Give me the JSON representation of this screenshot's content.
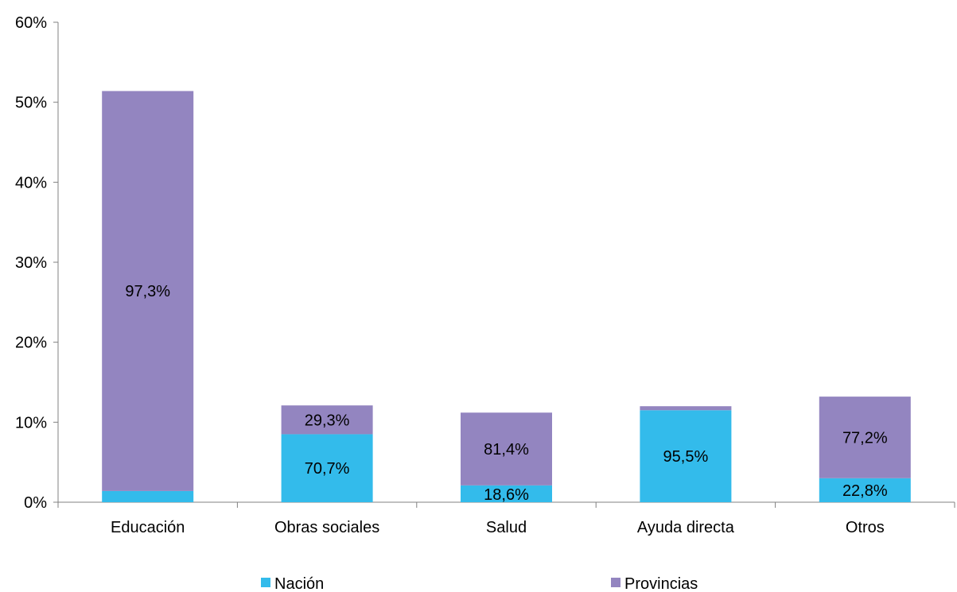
{
  "chart_data": {
    "type": "bar",
    "stacked": true,
    "categories": [
      "Educación",
      "Obras sociales",
      "Salud",
      "Ayuda directa",
      "Otros"
    ],
    "series": [
      {
        "name": "Nación",
        "color": "#33BBEB",
        "values": [
          1.4,
          8.5,
          2.1,
          11.5,
          3.0
        ],
        "labels": [
          "",
          "70,7%",
          "18,6%",
          "95,5%",
          "22,8%"
        ]
      },
      {
        "name": "Provincias",
        "color": "#9385C0",
        "values": [
          50.0,
          3.6,
          9.1,
          0.5,
          10.2
        ],
        "labels": [
          "97,3%",
          "29,3%",
          "81,4%",
          "",
          "77,2%"
        ]
      }
    ],
    "ylim": [
      0,
      60
    ],
    "yticks": [
      0,
      10,
      20,
      30,
      40,
      50,
      60
    ],
    "ytick_labels": [
      "0%",
      "10%",
      "20%",
      "30%",
      "40%",
      "50%",
      "60%"
    ],
    "grid": false,
    "legend": "bottom"
  }
}
